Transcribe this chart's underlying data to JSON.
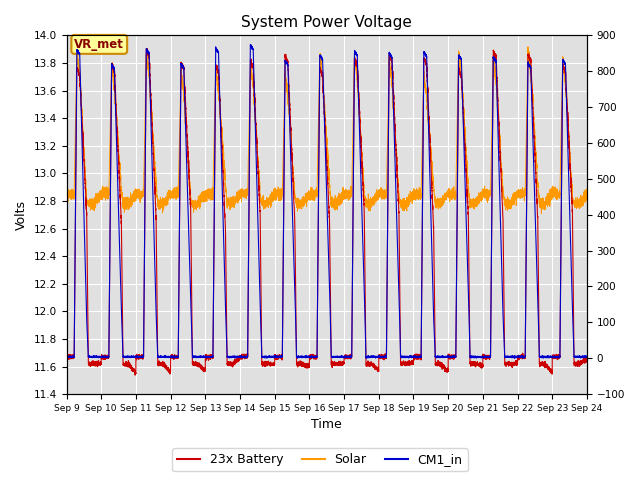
{
  "title": "System Power Voltage",
  "xlabel": "Time",
  "ylabel_left": "Volts",
  "ylim_left": [
    11.4,
    14.0
  ],
  "ylim_right": [
    -100,
    900
  ],
  "yticks_left": [
    11.4,
    11.6,
    11.8,
    12.0,
    12.2,
    12.4,
    12.6,
    12.8,
    13.0,
    13.2,
    13.4,
    13.6,
    13.8,
    14.0
  ],
  "yticks_right": [
    -100,
    0,
    100,
    200,
    300,
    400,
    500,
    600,
    700,
    800,
    900
  ],
  "xtick_labels": [
    "Sep 9",
    "Sep 10",
    "Sep 11",
    "Sep 12",
    "Sep 13",
    "Sep 14",
    "Sep 15",
    "Sep 16",
    "Sep 17",
    "Sep 18",
    "Sep 19",
    "Sep 20",
    "Sep 21",
    "Sep 22",
    "Sep 23",
    "Sep 24"
  ],
  "vr_met_label": "VR_met",
  "vr_met_color": "#880000",
  "vr_met_box_color": "#ffff99",
  "vr_met_box_edge": "#cc8800",
  "legend_entries": [
    "23x Battery",
    "Solar",
    "CM1_in"
  ],
  "line_colors": [
    "#cc0000",
    "#ff9900",
    "#0000cc"
  ],
  "background_color": "#ffffff",
  "plot_bg_color": "#e0e0e0",
  "grid_color": "#ffffff",
  "figsize": [
    6.4,
    4.8
  ],
  "dpi": 100
}
